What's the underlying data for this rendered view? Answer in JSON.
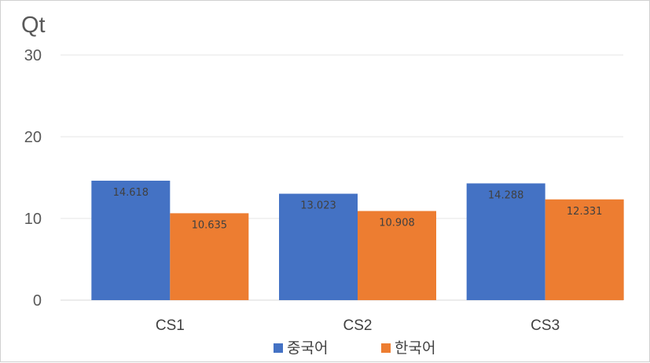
{
  "chart_data": {
    "type": "bar",
    "ylabel": "Qt",
    "categories": [
      "CS1",
      "CS2",
      "CS3"
    ],
    "ylim": [
      0,
      30
    ],
    "yticks": [
      0,
      10,
      20,
      30
    ],
    "grid": true,
    "legend_position": "bottom",
    "series": [
      {
        "name": "중국어",
        "color": "#4472C4",
        "values": [
          14.618,
          13.023,
          14.288
        ],
        "labels": [
          "14.618",
          "13.023",
          "14.288"
        ]
      },
      {
        "name": "한국어",
        "color": "#ED7D31",
        "values": [
          10.635,
          10.908,
          12.331
        ],
        "labels": [
          "10.635",
          "10.908",
          "12.331"
        ]
      }
    ]
  }
}
